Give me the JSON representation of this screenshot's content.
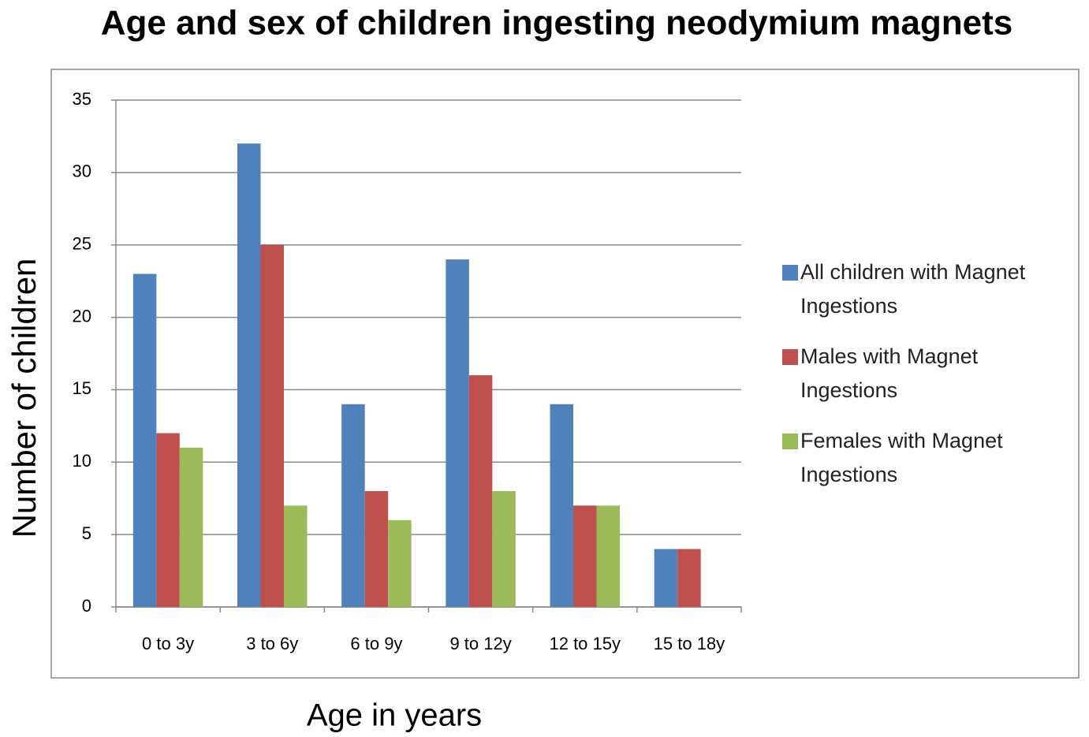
{
  "chart_data": {
    "type": "bar",
    "title": "Age and sex of children ingesting neodymium magnets",
    "x_label": "Age in years",
    "y_label": "Number of children",
    "categories": [
      "0 to 3y",
      "3 to 6y",
      "6 to 9y",
      "9 to 12y",
      "12 to 15y",
      "15 to 18y"
    ],
    "series": [
      {
        "name": "All children with Magnet Ingestions",
        "color": "#4f81bd",
        "values": [
          23,
          32,
          14,
          24,
          14,
          4
        ]
      },
      {
        "name": "Males with Magnet Ingestions",
        "color": "#c0504d",
        "values": [
          12,
          25,
          8,
          16,
          7,
          4
        ]
      },
      {
        "name": "Females with Magnet Ingestions",
        "color": "#9bbb59",
        "values": [
          11,
          7,
          6,
          8,
          7,
          0
        ]
      }
    ],
    "ylim": [
      0,
      35
    ],
    "yticks": [
      0,
      5,
      10,
      15,
      20,
      25,
      30,
      35
    ],
    "grid": true,
    "legend": "right"
  }
}
